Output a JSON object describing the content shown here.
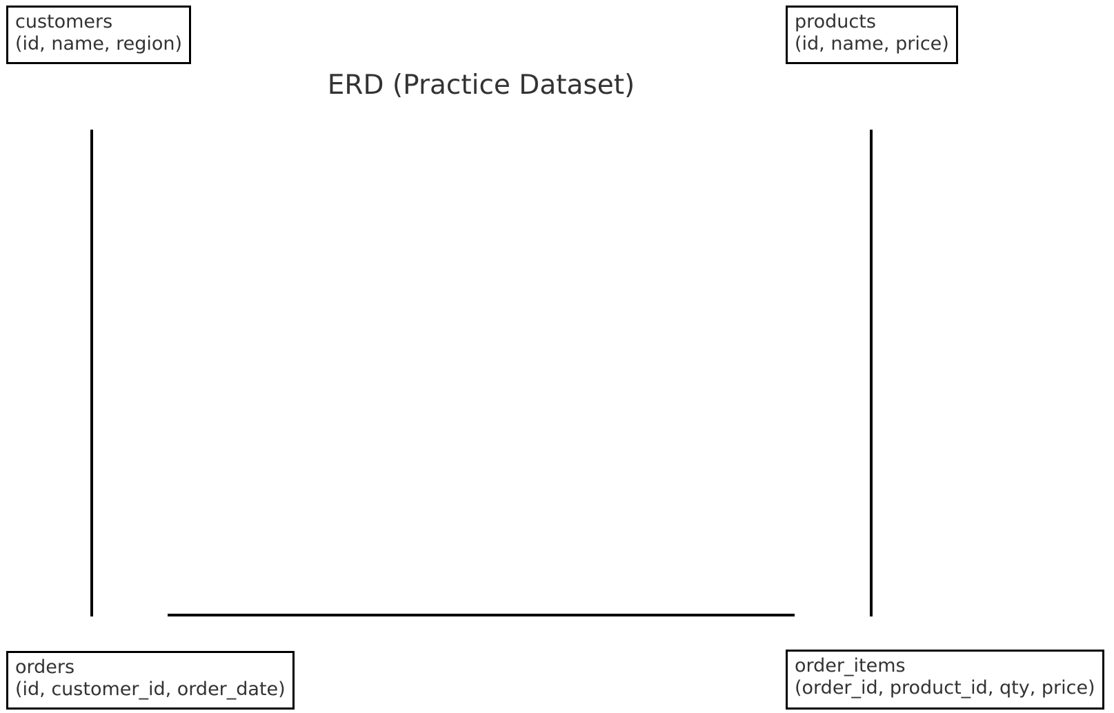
{
  "diagram": {
    "title": "ERD (Practice Dataset)",
    "entities": [
      {
        "name": "customers",
        "fields": "(id, name, region)"
      },
      {
        "name": "products",
        "fields": "(id, name, price)"
      },
      {
        "name": "orders",
        "fields": "(id, customer_id, order_date)"
      },
      {
        "name": "order_items",
        "fields": "(order_id, product_id, qty, price)"
      }
    ],
    "relationships": [
      {
        "from": "customers",
        "to": "orders"
      },
      {
        "from": "products",
        "to": "order_items"
      },
      {
        "from": "orders",
        "to": "order_items"
      }
    ]
  }
}
